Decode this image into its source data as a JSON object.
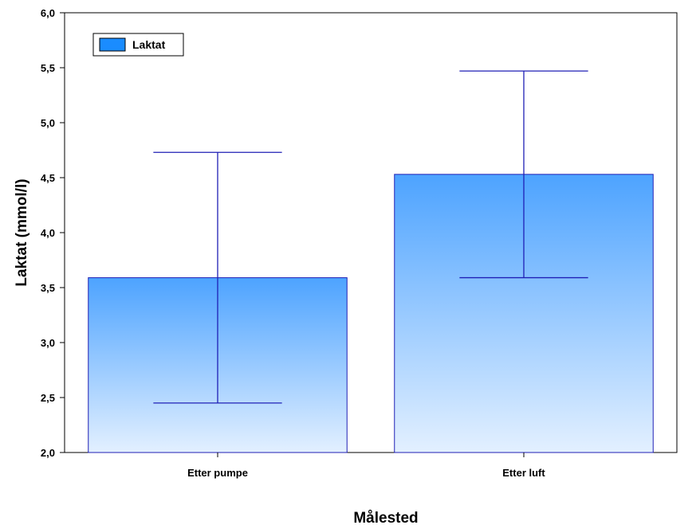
{
  "chart_data": {
    "type": "bar",
    "title": "",
    "xlabel": "Målested",
    "ylabel": "Laktat (mmol/l)",
    "categories": [
      "Etter pumpe",
      "Etter luft"
    ],
    "series": [
      {
        "name": "Laktat",
        "values": [
          3.59,
          4.53
        ],
        "error_low": [
          2.45,
          3.59
        ],
        "error_high": [
          4.73,
          5.47
        ]
      }
    ],
    "ylim": [
      2.0,
      6.0
    ],
    "yticks": [
      "2,0",
      "2,5",
      "3,0",
      "3,5",
      "4,0",
      "4,5",
      "5,0",
      "5,5",
      "6,0"
    ],
    "grid": false,
    "legend_position": "top-left",
    "colors": {
      "bar_top": "#4da3ff",
      "bar_bottom": "#e3f0ff",
      "bar_edge": "#1f1fb5",
      "error_bar": "#1f1fb5",
      "legend_swatch": "#1a8cff"
    }
  }
}
